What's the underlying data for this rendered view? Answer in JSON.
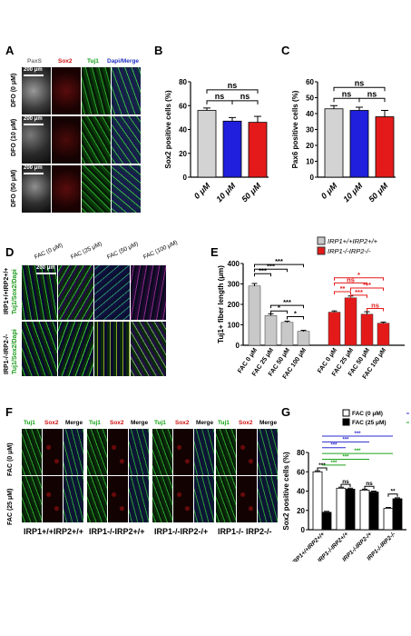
{
  "panels": {
    "A": {
      "label": "A",
      "channels": [
        "PaxS",
        "Sox2",
        "Tuj1",
        "Dapi/Merge"
      ],
      "rows": [
        "DFO (0 μM)",
        "DFO (10 μM)",
        "DFO (50 μM)"
      ],
      "scale": "200 μm"
    },
    "B": {
      "label": "B"
    },
    "C": {
      "label": "C"
    },
    "D": {
      "label": "D",
      "conditions": [
        "FAC (0 μM)",
        "FAC (25 μM)",
        "FAC (50 μM)",
        "FAC (100 μM)"
      ],
      "rows": [
        "IRP1+/+IRP2+/+",
        "IRP1-/-IRP2-/-"
      ],
      "stain": "Tuj1/Sox2/Dapi",
      "scale": "200 μm"
    },
    "E": {
      "label": "E"
    },
    "F": {
      "label": "F",
      "channels": [
        "Tuj1",
        "Sox2",
        "Merge"
      ],
      "rows": [
        "FAC (0 μM)",
        "FAC (25 μM)"
      ],
      "genotypes": [
        "IRP1+/+IRP2+/+",
        "IRP1-/-IRP2+/+",
        "IRP1-/-IRP2-/+",
        "IRP1-/- IRP2-/-"
      ]
    },
    "G": {
      "label": "G"
    }
  },
  "chart_data": [
    {
      "panel": "B",
      "type": "bar",
      "ylabel": "Sox2 positive cells (%)",
      "ylim": [
        0,
        80
      ],
      "yticks": [
        0,
        20,
        40,
        60,
        80
      ],
      "categories": [
        "0 μM",
        "10 μM",
        "50 μM"
      ],
      "values": [
        56,
        47,
        46
      ],
      "errors": [
        2,
        3,
        5
      ],
      "colors": [
        "#d3d3d3",
        "#1f1fdd",
        "#e41a1a"
      ],
      "annotations": [
        "ns",
        "ns",
        "ns"
      ]
    },
    {
      "panel": "C",
      "type": "bar",
      "ylabel": "Pax6 positive cells (%)",
      "ylim": [
        0,
        60
      ],
      "yticks": [
        0,
        10,
        20,
        30,
        40,
        50,
        60
      ],
      "categories": [
        "0 μM",
        "10 μM",
        "50 μM"
      ],
      "values": [
        43,
        42,
        38
      ],
      "errors": [
        2,
        2,
        4
      ],
      "colors": [
        "#d3d3d3",
        "#1f1fdd",
        "#e41a1a"
      ],
      "annotations": [
        "ns",
        "ns",
        "ns"
      ]
    },
    {
      "panel": "E",
      "type": "bar",
      "ylabel": "Tuj1+ fiber length (μm)",
      "ylim": [
        0,
        400
      ],
      "yticks": [
        0,
        100,
        200,
        300,
        400
      ],
      "categories": [
        "FAC 0 μM",
        "FAC 25 μM",
        "FAC 50 μM",
        "FAC 100 μM"
      ],
      "series": [
        {
          "name": "IRP1+/+IRP2+/+",
          "values": [
            290,
            145,
            112,
            68
          ],
          "errors": [
            12,
            8,
            6,
            5
          ],
          "color": "#c8c8c8"
        },
        {
          "name": "IRP1-/-IRP2-/-",
          "values": [
            162,
            232,
            152,
            108
          ],
          "errors": [
            6,
            9,
            12,
            5
          ],
          "color": "#e41a1a"
        }
      ],
      "annotations": [
        "***",
        "***",
        "***",
        "***",
        "*",
        "*",
        "*",
        "**",
        "***",
        "***",
        "ns",
        "ns"
      ]
    },
    {
      "panel": "G",
      "type": "bar",
      "ylabel": "Sox2 positive cells (%)",
      "ylim": [
        0,
        80
      ],
      "yticks": [
        0,
        20,
        40,
        60,
        80
      ],
      "categories": [
        "IRP1+/+IRP2+/+",
        "IRP1-/-IRP2+/+",
        "IRP1-/-IRP2-/+",
        "IRP1-/-IRP2-/-"
      ],
      "series": [
        {
          "name": "FAC (0 μM)",
          "values": [
            60,
            43,
            41,
            22
          ],
          "errors": [
            1,
            1,
            1,
            1
          ],
          "color": "#ffffff"
        },
        {
          "name": "FAC (25 μM)",
          "values": [
            18,
            42,
            39,
            32
          ],
          "errors": [
            1,
            1,
            1,
            1
          ],
          "color": "#000000"
        }
      ],
      "annotations": [
        "***",
        "ns",
        "ns",
        "**",
        "***",
        "***",
        "***",
        "***",
        "***",
        "***"
      ]
    }
  ]
}
